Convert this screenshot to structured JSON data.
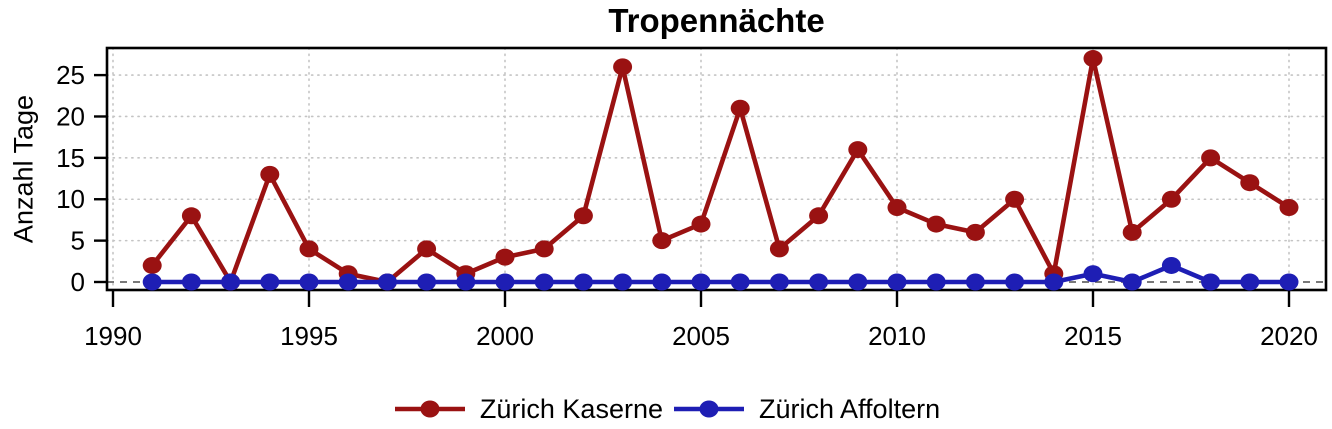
{
  "title": "Tropennächte",
  "chart_data": {
    "type": "line",
    "title": "Tropennächte",
    "xlabel": "",
    "ylabel": "Anzahl Tage",
    "x": [
      1991,
      1992,
      1993,
      1994,
      1995,
      1996,
      1997,
      1998,
      1999,
      2000,
      2001,
      2002,
      2003,
      2004,
      2005,
      2006,
      2007,
      2008,
      2009,
      2010,
      2011,
      2012,
      2013,
      2014,
      2015,
      2016,
      2017,
      2018,
      2019,
      2020
    ],
    "series": [
      {
        "name": "Zürich Kaserne",
        "color": "#9a1212",
        "values": [
          2,
          8,
          0,
          13,
          4,
          1,
          0,
          4,
          1,
          3,
          4,
          8,
          26,
          5,
          7,
          21,
          4,
          8,
          16,
          9,
          7,
          6,
          10,
          1,
          27,
          6,
          10,
          15,
          12,
          9
        ]
      },
      {
        "name": "Zürich Affoltern",
        "color": "#1e1eb4",
        "values": [
          0,
          0,
          0,
          0,
          0,
          0,
          0,
          0,
          0,
          0,
          0,
          0,
          0,
          0,
          0,
          0,
          0,
          0,
          0,
          0,
          0,
          0,
          0,
          0,
          1,
          0,
          2,
          0,
          0,
          0
        ]
      }
    ],
    "x_ticks": [
      1990,
      1995,
      2000,
      2005,
      2010,
      2015,
      2020
    ],
    "y_ticks": [
      0,
      5,
      10,
      15,
      20,
      25
    ],
    "xlim": [
      1989.85,
      2020.95
    ],
    "ylim": [
      -1,
      28.3
    ],
    "grid": "dotted",
    "grid_color": "#c4c4c4",
    "zero_line_style": "dashed",
    "zero_line_color": "#4d4d4d",
    "axis_color": "#000000",
    "legend_position": "bottom"
  }
}
